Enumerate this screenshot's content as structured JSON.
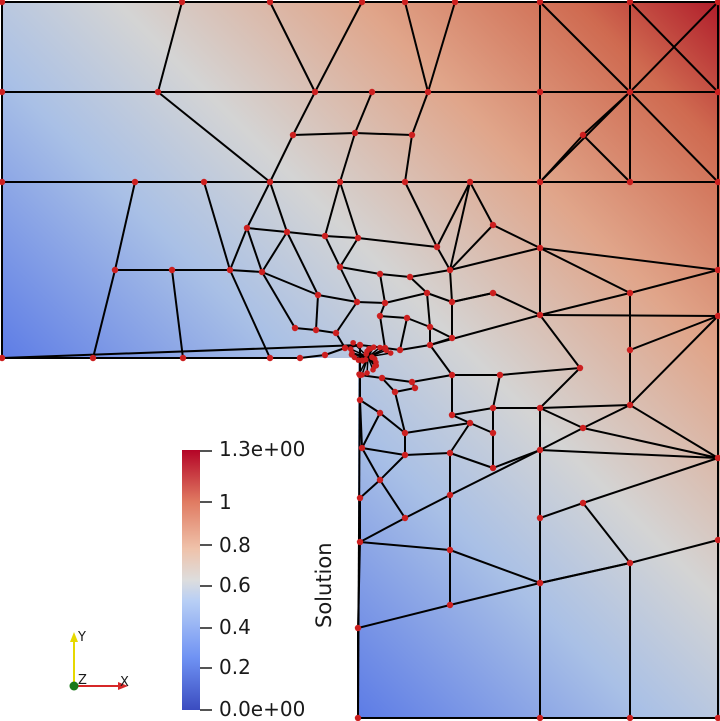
{
  "viewer": {
    "colorbar": {
      "title": "Solution",
      "labels": [
        "1.3e+00",
        "1",
        "0.8",
        "0.6",
        "0.4",
        "0.2",
        "0.0e+00"
      ],
      "colormap": [
        "#3b4cc0",
        "#6f92f3",
        "#aac7fd",
        "#dddddd",
        "#f7b89c",
        "#e7745b",
        "#b40426"
      ]
    },
    "axes": {
      "y_label": "Y",
      "z_label": "Z",
      "x_label": "X",
      "x_color": "#d62728",
      "y_color": "#e6d800",
      "z_color": "#1a7a1a"
    },
    "mesh": {
      "edge_color": "#000000",
      "node_color": "#cc1f1f"
    }
  }
}
